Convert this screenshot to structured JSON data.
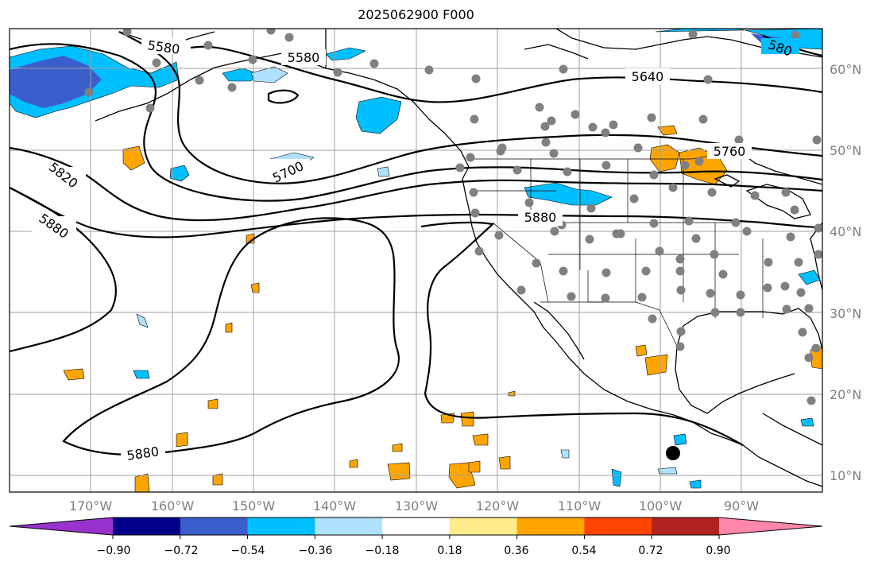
{
  "title": "2025062900 F000",
  "latitude_labels": [
    "60°N",
    "50°N",
    "40°N",
    "30°N",
    "20°N",
    "10°N"
  ],
  "longitude_labels": [
    "170°W",
    "160°W",
    "150°W",
    "140°W",
    "130°W",
    "120°W",
    "110°W",
    "100°W",
    "90°W"
  ],
  "contour_labels": [
    "5580",
    "5580",
    "5640",
    "5760",
    "5700",
    "5820",
    "5880",
    "5880",
    "5880",
    "580"
  ],
  "colorbar": {
    "tick_labels": [
      "−0.90",
      "−0.72",
      "−0.54",
      "−0.36",
      "−0.18",
      "0.18",
      "0.36",
      "0.54",
      "0.72",
      "0.90"
    ],
    "colors": [
      "#9932cc",
      "#00008b",
      "#3a5fcd",
      "#00bfff",
      "#b0e2ff",
      "#ffffff",
      "#ffec8b",
      "#ffa500",
      "#ff4500",
      "#b22222",
      "#ff88aa"
    ]
  },
  "colors": {
    "contour": "#000000",
    "station_dot": "#808080",
    "grid": "#a0a0a0"
  }
}
